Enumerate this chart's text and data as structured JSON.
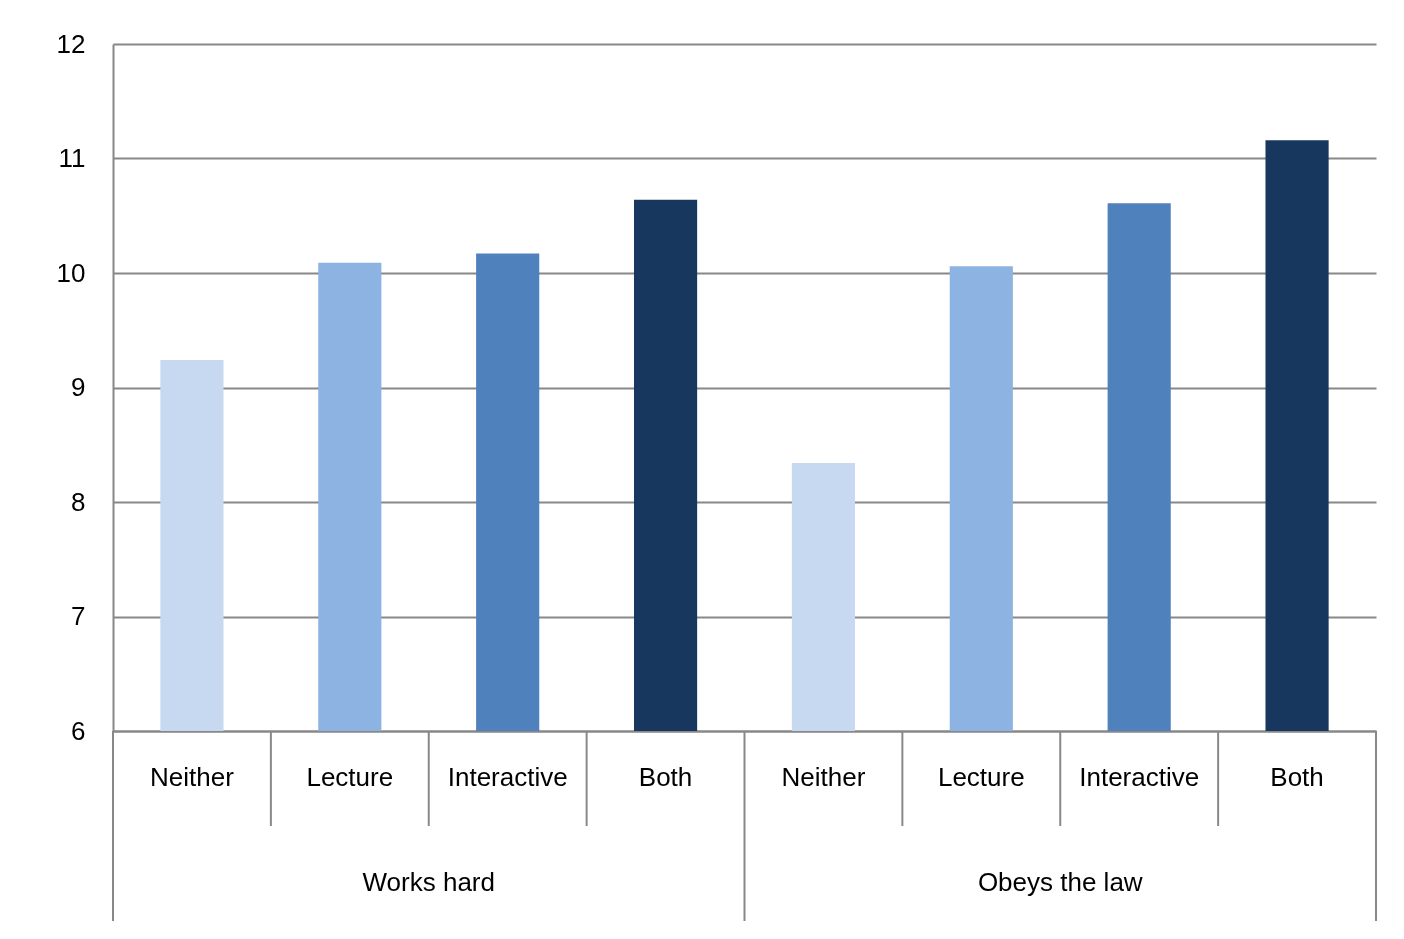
{
  "chart_data": {
    "type": "bar",
    "categories": [
      "Neither",
      "Lecture",
      "Interactive",
      "Both",
      "Neither",
      "Lecture",
      "Interactive",
      "Both"
    ],
    "values": [
      9.24,
      10.09,
      10.17,
      10.64,
      8.34,
      10.06,
      10.61,
      11.16
    ],
    "colors": [
      "#c6d9f0",
      "#8db3e2",
      "#4f81bd",
      "#17375e",
      "#c6d9f0",
      "#8db3e2",
      "#4f81bd",
      "#17375e"
    ],
    "ylim": [
      6,
      12
    ],
    "yticks": [
      6,
      7,
      8,
      9,
      10,
      11,
      12
    ],
    "grid": "y",
    "annotations": [
      "Works hard",
      "Obeys the law"
    ]
  }
}
